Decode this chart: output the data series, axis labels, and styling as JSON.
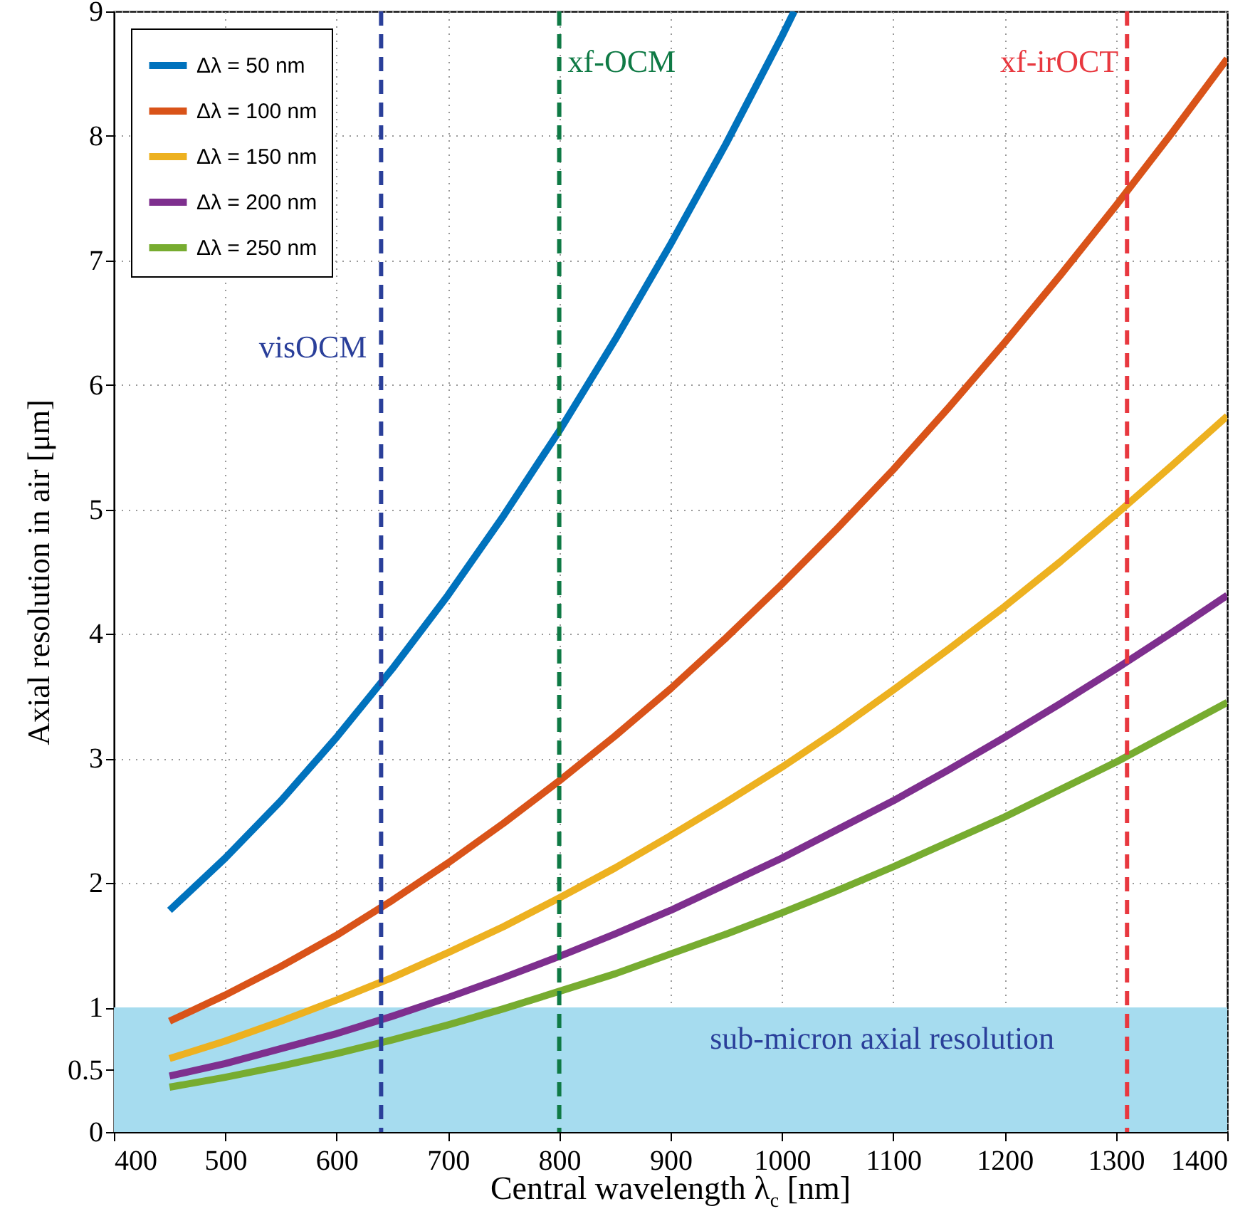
{
  "chart_data": {
    "type": "line",
    "xlabel": "Central wavelength λ$_{c}$ [nm]",
    "ylabel": "Axial resolution in air [μm]",
    "xlim": [
      400,
      1400
    ],
    "xticks": [
      400,
      500,
      600,
      700,
      800,
      900,
      1000,
      1100,
      1200,
      1300,
      1400
    ],
    "ylim": [
      0,
      9
    ],
    "yticks": [
      0,
      0.5,
      1,
      2,
      3,
      4,
      5,
      6,
      7,
      8,
      9
    ],
    "grid": true,
    "legend": "top left",
    "series": [
      {
        "name": "Δλ = 50 nm",
        "color": "#0072bd",
        "x": [
          450,
          500,
          550,
          600,
          650,
          700,
          750,
          800,
          850,
          900,
          950,
          1000,
          1011
        ],
        "values": [
          1.78,
          2.2,
          2.66,
          3.17,
          3.72,
          4.31,
          4.95,
          5.63,
          6.36,
          7.13,
          7.94,
          8.8,
          9.0
        ]
      },
      {
        "name": "Δλ = 100 nm",
        "color": "#d95319",
        "x": [
          450,
          500,
          550,
          600,
          650,
          700,
          750,
          800,
          850,
          900,
          950,
          1000,
          1050,
          1100,
          1150,
          1200,
          1250,
          1300,
          1350,
          1400
        ],
        "values": [
          0.89,
          1.1,
          1.33,
          1.58,
          1.86,
          2.16,
          2.48,
          2.82,
          3.18,
          3.56,
          3.97,
          4.4,
          4.85,
          5.32,
          5.82,
          6.34,
          6.88,
          7.44,
          8.02,
          8.62
        ]
      },
      {
        "name": "Δλ = 150 nm",
        "color": "#edb120",
        "x": [
          450,
          500,
          550,
          600,
          650,
          700,
          750,
          800,
          850,
          900,
          950,
          1000,
          1050,
          1100,
          1150,
          1200,
          1250,
          1300,
          1350,
          1400
        ],
        "values": [
          0.59,
          0.73,
          0.89,
          1.06,
          1.24,
          1.44,
          1.65,
          1.88,
          2.12,
          2.38,
          2.65,
          2.93,
          3.23,
          3.55,
          3.88,
          4.22,
          4.58,
          4.96,
          5.35,
          5.75
        ]
      },
      {
        "name": "Δλ = 200 nm",
        "color": "#7e2f8e",
        "x": [
          450,
          500,
          550,
          600,
          650,
          700,
          750,
          800,
          850,
          900,
          950,
          1000,
          1050,
          1100,
          1150,
          1200,
          1250,
          1300,
          1350,
          1400
        ],
        "values": [
          0.45,
          0.55,
          0.67,
          0.79,
          0.93,
          1.08,
          1.24,
          1.41,
          1.59,
          1.78,
          1.99,
          2.2,
          2.43,
          2.66,
          2.91,
          3.17,
          3.44,
          3.72,
          4.01,
          4.31
        ]
      },
      {
        "name": "Δλ = 250 nm",
        "color": "#77ac30",
        "x": [
          450,
          500,
          550,
          600,
          650,
          700,
          750,
          800,
          850,
          900,
          950,
          1000,
          1050,
          1100,
          1150,
          1200,
          1250,
          1300,
          1350,
          1400
        ],
        "values": [
          0.36,
          0.44,
          0.53,
          0.63,
          0.74,
          0.86,
          0.99,
          1.13,
          1.27,
          1.43,
          1.59,
          1.76,
          1.94,
          2.13,
          2.33,
          2.53,
          2.75,
          2.97,
          3.21,
          3.45
        ]
      }
    ],
    "ref_lines": [
      {
        "axis": "x",
        "value": 640,
        "label": "visOCM",
        "color": "#2a3f9a",
        "line_style": "dashed"
      },
      {
        "axis": "x",
        "value": 800,
        "label": "xf-OCM",
        "color": "#0f7a45",
        "line_style": "dashed"
      },
      {
        "axis": "x",
        "value": 1310,
        "label": "xf-irOCT",
        "color": "#e8383f",
        "line_style": "dashed"
      }
    ],
    "bands": [
      {
        "axis": "y",
        "from": 0,
        "to": 1,
        "label": "sub-micron axial resolution",
        "color": "#a6dcef"
      }
    ]
  }
}
